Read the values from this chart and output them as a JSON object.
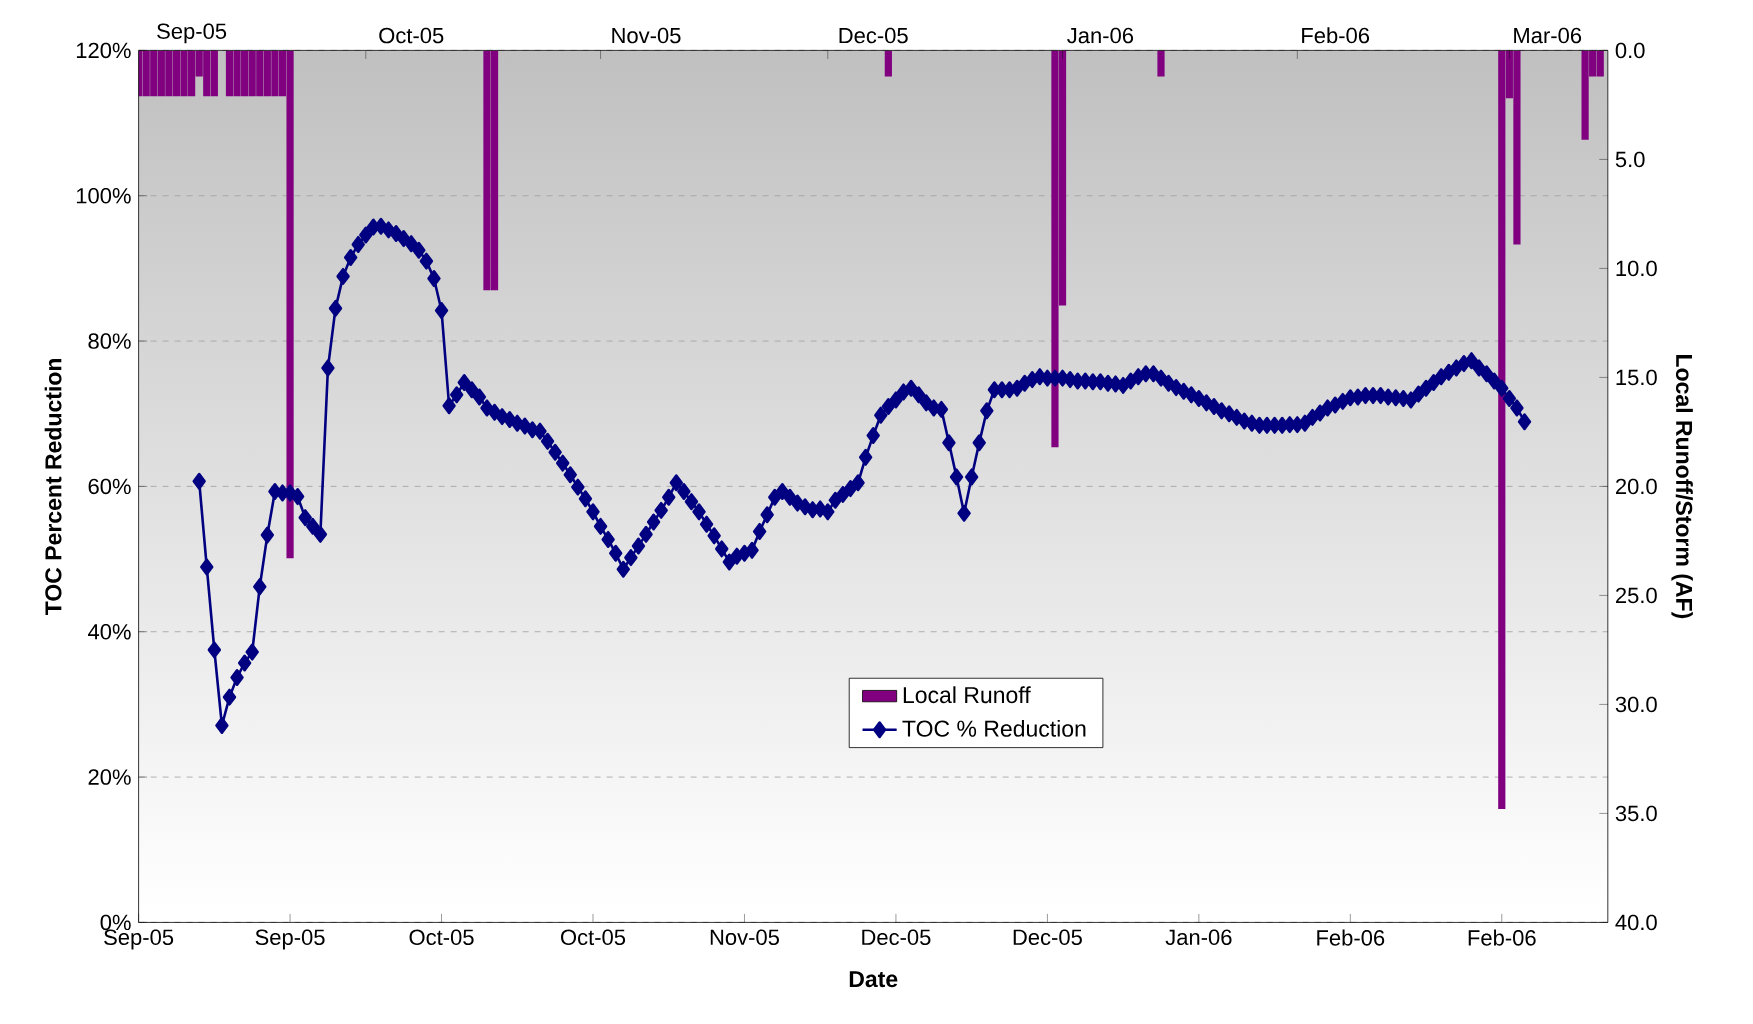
{
  "chart_data": {
    "type": "line",
    "xlabel": "Date",
    "ylabel": "TOC Percent Reduction",
    "y2label": "Local Runoff/Storm (AF)",
    "xlim": [
      "2005-09-01",
      "2006-03-14"
    ],
    "xticks": [
      {
        "value": "2005-09-01",
        "label": "Sep-05"
      },
      {
        "value": "2005-09-21",
        "label": "Sep-05"
      },
      {
        "value": "2005-10-11",
        "label": "Oct-05"
      },
      {
        "value": "2005-10-31",
        "label": "Oct-05"
      },
      {
        "value": "2005-11-20",
        "label": "Nov-05"
      },
      {
        "value": "2005-12-10",
        "label": "Dec-05"
      },
      {
        "value": "2005-12-30",
        "label": "Dec-05"
      },
      {
        "value": "2006-01-19",
        "label": "Jan-06"
      },
      {
        "value": "2006-02-08",
        "label": "Feb-06"
      },
      {
        "value": "2006-02-28",
        "label": "Feb-06"
      }
    ],
    "x2lim": [
      "2005-09-01",
      "2006-03-14"
    ],
    "x2ticks": [
      {
        "value": "2005-10-01",
        "label": null
      },
      {
        "value": "2005-11-01",
        "label": null
      },
      {
        "value": "2005-12-01",
        "label": null
      },
      {
        "value": "2006-01-01",
        "label": null
      },
      {
        "value": "2006-02-01",
        "label": null
      },
      {
        "value": "2006-03-01",
        "label": null
      },
      {
        "value": "2005-09-08",
        "label": "Sep-05"
      },
      {
        "value": "2005-10-07",
        "label": "Oct-05"
      },
      {
        "value": "2005-11-07",
        "label": "Nov-05"
      },
      {
        "value": "2005-12-07",
        "label": "Dec-05"
      },
      {
        "value": "2006-01-06",
        "label": "Jan-06"
      },
      {
        "value": "2006-02-06",
        "label": "Feb-06"
      },
      {
        "value": "2006-03-06",
        "label": "Mar-06"
      }
    ],
    "ylim": [
      0,
      120
    ],
    "yticks": [
      {
        "value": 0,
        "label": "0%"
      },
      {
        "value": 20,
        "label": "20%"
      },
      {
        "value": 40,
        "label": "40%"
      },
      {
        "value": 60,
        "label": "60%"
      },
      {
        "value": 80,
        "label": "80%"
      },
      {
        "value": 100,
        "label": "100%"
      },
      {
        "value": 120,
        "label": "120%"
      }
    ],
    "y2lim": [
      40,
      0
    ],
    "y2ticks": [
      {
        "value": 0,
        "label": "0.0"
      },
      {
        "value": 5,
        "label": "5.0"
      },
      {
        "value": 10,
        "label": "10.0"
      },
      {
        "value": 15,
        "label": "15.0"
      },
      {
        "value": 20,
        "label": "20.0"
      },
      {
        "value": 25,
        "label": "25.0"
      },
      {
        "value": 30,
        "label": "30.0"
      },
      {
        "value": 35,
        "label": "35.0"
      },
      {
        "value": 40,
        "label": "40.0"
      }
    ],
    "grid": "y",
    "legend": "bottom",
    "marker": "diamond",
    "series": [
      {
        "name": "Local Runoff",
        "type": "bar",
        "axis": "y2",
        "color": "#800080",
        "x": [
          "2005-09-01",
          "2005-09-02",
          "2005-09-03",
          "2005-09-04",
          "2005-09-05",
          "2005-09-06",
          "2005-09-07",
          "2005-09-08",
          "2005-09-09",
          "2005-09-10",
          "2005-09-11",
          "2005-09-13",
          "2005-09-14",
          "2005-09-15",
          "2005-09-16",
          "2005-09-17",
          "2005-09-18",
          "2005-09-19",
          "2005-09-20",
          "2005-09-21",
          "2005-10-17",
          "2005-10-18",
          "2005-12-09",
          "2005-12-31",
          "2006-01-01",
          "2006-01-14",
          "2006-02-28",
          "2006-03-01",
          "2006-03-02",
          "2006-03-11",
          "2006-03-12",
          "2006-03-13"
        ],
        "values": [
          2.1,
          2.1,
          2.1,
          2.1,
          2.1,
          2.1,
          2.1,
          2.1,
          1.2,
          2.1,
          2.1,
          2.1,
          2.1,
          2.1,
          2.1,
          2.1,
          2.1,
          2.1,
          2.1,
          23.3,
          11.0,
          11.0,
          1.2,
          18.2,
          11.7,
          1.2,
          34.8,
          2.2,
          8.9,
          4.1,
          1.2,
          1.2
        ]
      },
      {
        "name": "TOC % Reduction",
        "color": "#000080",
        "x": [
          "2005-09-09",
          "2005-09-10",
          "2005-09-11",
          "2005-09-12",
          "2005-09-13",
          "2005-09-14",
          "2005-09-15",
          "2005-09-16",
          "2005-09-17",
          "2005-09-18",
          "2005-09-19",
          "2005-09-20",
          "2005-09-21",
          "2005-09-22",
          "2005-09-23",
          "2005-09-24",
          "2005-09-25",
          "2005-09-26",
          "2005-09-27",
          "2005-09-28",
          "2005-09-29",
          "2005-09-30",
          "2005-10-01",
          "2005-10-02",
          "2005-10-03",
          "2005-10-04",
          "2005-10-05",
          "2005-10-06",
          "2005-10-07",
          "2005-10-08",
          "2005-10-09",
          "2005-10-10",
          "2005-10-11",
          "2005-10-12",
          "2005-10-13",
          "2005-10-14",
          "2005-10-15",
          "2005-10-16",
          "2005-10-17",
          "2005-10-18",
          "2005-10-19",
          "2005-10-20",
          "2005-10-21",
          "2005-10-22",
          "2005-10-23",
          "2005-10-24",
          "2005-10-25",
          "2005-10-26",
          "2005-10-27",
          "2005-10-28",
          "2005-10-29",
          "2005-10-30",
          "2005-10-31",
          "2005-11-01",
          "2005-11-02",
          "2005-11-03",
          "2005-11-04",
          "2005-11-05",
          "2005-11-06",
          "2005-11-07",
          "2005-11-08",
          "2005-11-09",
          "2005-11-10",
          "2005-11-11",
          "2005-11-12",
          "2005-11-13",
          "2005-11-14",
          "2005-11-15",
          "2005-11-16",
          "2005-11-17",
          "2005-11-18",
          "2005-11-19",
          "2005-11-20",
          "2005-11-21",
          "2005-11-22",
          "2005-11-23",
          "2005-11-24",
          "2005-11-25",
          "2005-11-26",
          "2005-11-27",
          "2005-11-28",
          "2005-11-29",
          "2005-11-30",
          "2005-12-01",
          "2005-12-02",
          "2005-12-03",
          "2005-12-04",
          "2005-12-05",
          "2005-12-06",
          "2005-12-07",
          "2005-12-08",
          "2005-12-09",
          "2005-12-10",
          "2005-12-11",
          "2005-12-12",
          "2005-12-13",
          "2005-12-14",
          "2005-12-15",
          "2005-12-16",
          "2005-12-17",
          "2005-12-18",
          "2005-12-19",
          "2005-12-20",
          "2005-12-21",
          "2005-12-22",
          "2005-12-23",
          "2005-12-24",
          "2005-12-25",
          "2005-12-26",
          "2005-12-27",
          "2005-12-28",
          "2005-12-29",
          "2005-12-30",
          "2005-12-31",
          "2006-01-01",
          "2006-01-02",
          "2006-01-03",
          "2006-01-04",
          "2006-01-05",
          "2006-01-06",
          "2006-01-07",
          "2006-01-08",
          "2006-01-09",
          "2006-01-10",
          "2006-01-11",
          "2006-01-12",
          "2006-01-13",
          "2006-01-14",
          "2006-01-15",
          "2006-01-16",
          "2006-01-17",
          "2006-01-18",
          "2006-01-19",
          "2006-01-20",
          "2006-01-21",
          "2006-01-22",
          "2006-01-23",
          "2006-01-24",
          "2006-01-25",
          "2006-01-26",
          "2006-01-27",
          "2006-01-28",
          "2006-01-29",
          "2006-01-30",
          "2006-01-31",
          "2006-02-01",
          "2006-02-02",
          "2006-02-03",
          "2006-02-04",
          "2006-02-05",
          "2006-02-06",
          "2006-02-07",
          "2006-02-08",
          "2006-02-09",
          "2006-02-10",
          "2006-02-11",
          "2006-02-12",
          "2006-02-13",
          "2006-02-14",
          "2006-02-15",
          "2006-02-16",
          "2006-02-17",
          "2006-02-18",
          "2006-02-19",
          "2006-02-20",
          "2006-02-21",
          "2006-02-22",
          "2006-02-23",
          "2006-02-24",
          "2006-02-25",
          "2006-02-26",
          "2006-02-27",
          "2006-02-28",
          "2006-03-01",
          "2006-03-02",
          "2006-03-03"
        ],
        "values": [
          60.7,
          48.9,
          37.5,
          27.1,
          31.0,
          33.7,
          35.7,
          37.2,
          46.2,
          53.3,
          59.3,
          59.1,
          59.1,
          58.6,
          55.7,
          54.5,
          53.4,
          76.3,
          84.5,
          88.9,
          91.5,
          93.3,
          94.6,
          95.7,
          95.8,
          95.3,
          94.8,
          94.1,
          93.4,
          92.5,
          91.0,
          88.6,
          84.2,
          71.1,
          72.6,
          74.3,
          73.3,
          72.3,
          70.8,
          70.2,
          69.6,
          69.2,
          68.7,
          68.3,
          67.8,
          67.6,
          66.2,
          64.7,
          63.2,
          61.6,
          59.9,
          58.3,
          56.5,
          54.5,
          52.7,
          50.8,
          48.6,
          50.2,
          51.8,
          53.4,
          55.1,
          56.7,
          58.5,
          60.5,
          59.3,
          57.9,
          56.5,
          54.8,
          53.2,
          51.4,
          49.6,
          50.4,
          50.8,
          51.2,
          53.8,
          56.1,
          58.5,
          59.3,
          58.5,
          57.7,
          57.2,
          56.8,
          56.9,
          56.5,
          58.1,
          58.9,
          59.7,
          60.5,
          64.0,
          67.0,
          69.8,
          71.0,
          71.9,
          73.0,
          73.5,
          72.6,
          71.5,
          70.8,
          70.6,
          66.0,
          61.3,
          56.3,
          61.3,
          66.0,
          70.4,
          73.3,
          73.3,
          73.3,
          73.5,
          74.2,
          74.7,
          75.1,
          74.9,
          74.9,
          74.9,
          74.7,
          74.5,
          74.5,
          74.4,
          74.4,
          74.2,
          74.1,
          73.9,
          74.5,
          75.1,
          75.5,
          75.5,
          74.9,
          74.2,
          73.6,
          73.1,
          72.6,
          72.1,
          71.5,
          71.0,
          70.4,
          70.0,
          69.5,
          69.0,
          68.7,
          68.4,
          68.4,
          68.4,
          68.4,
          68.5,
          68.5,
          68.7,
          69.5,
          70.1,
          70.8,
          71.2,
          71.7,
          72.2,
          72.3,
          72.5,
          72.5,
          72.5,
          72.3,
          72.2,
          72.1,
          71.9,
          72.7,
          73.5,
          74.3,
          75.1,
          75.7,
          76.3,
          76.9,
          77.3,
          76.3,
          75.5,
          74.5,
          73.5,
          72.1,
          70.8,
          68.9
        ]
      }
    ]
  }
}
